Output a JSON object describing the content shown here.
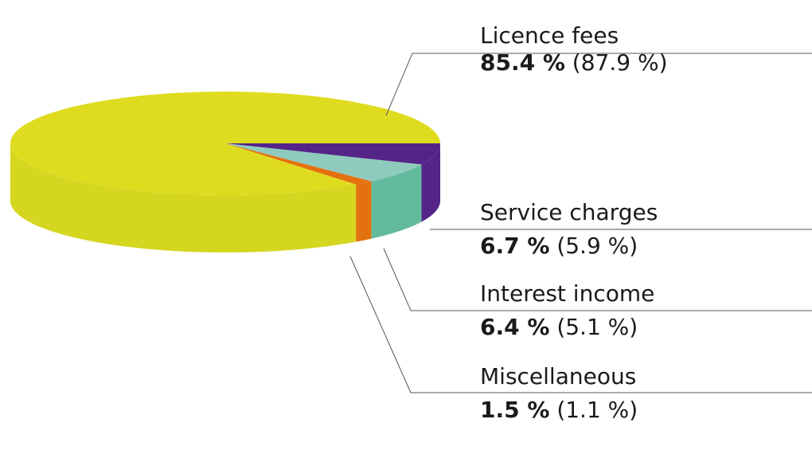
{
  "chart_data": {
    "type": "pie",
    "style": "3d",
    "slices": [
      {
        "label": "Licence fees",
        "value": 85.4,
        "value_label": "85.4 %",
        "previous_label": "(87.9 %)",
        "color": "#dfdc1f",
        "side_color": "#d5d620"
      },
      {
        "label": "Service charges",
        "value": 6.7,
        "value_label": "6.7 %",
        "previous_label": "(5.9 %)",
        "color": "#542489",
        "side_color": "#542489"
      },
      {
        "label": "Interest income",
        "value": 6.4,
        "value_label": "6.4 %",
        "previous_label": "(5.1 %)",
        "color": "#8fcbbd",
        "side_color": "#62ba9e"
      },
      {
        "label": "Miscellaneous",
        "value": 1.5,
        "value_label": "1.5 %",
        "previous_label": "(1.1 %)",
        "color": "#e4710f",
        "side_color": "#e4710f"
      }
    ]
  }
}
